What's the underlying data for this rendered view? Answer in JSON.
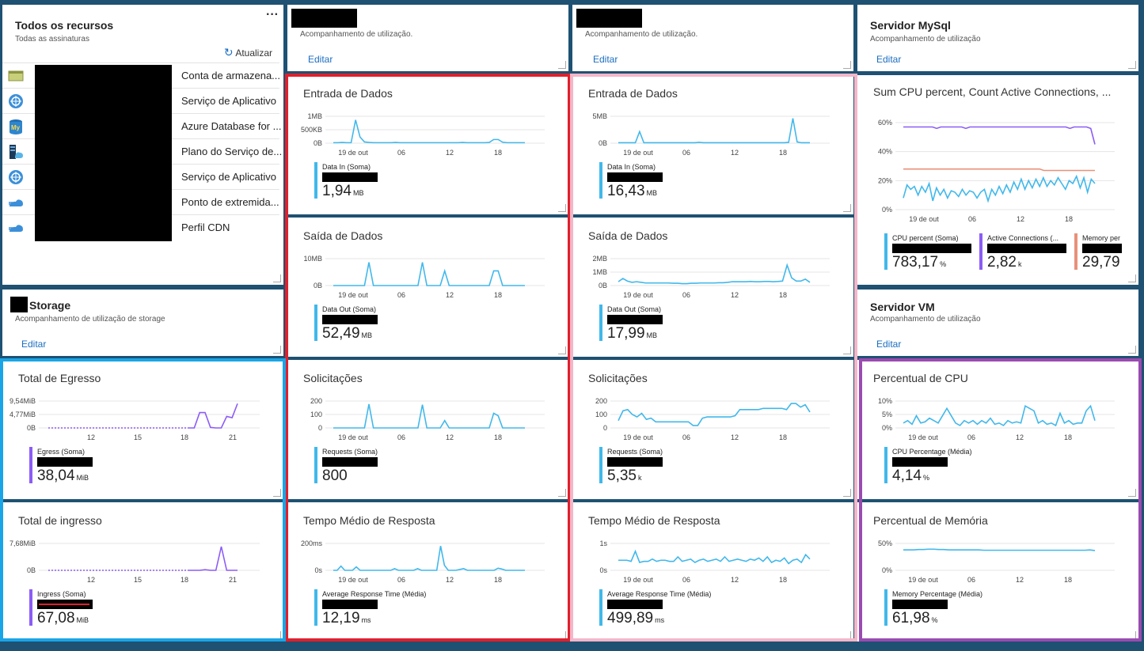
{
  "colors": {
    "chart_line": "#41b8eb",
    "legend_blue": "#41b8eb",
    "purple": "#8b5cf6",
    "orange": "#e8917a",
    "red_frame": "#e0202c",
    "pink_frame": "#f4b6c8",
    "blue_frame": "#1aa5e6",
    "purple_frame": "#9a4bb0"
  },
  "resources": {
    "title": "Todos os recursos",
    "subtitle": "Todas as assinaturas",
    "more": "···",
    "refresh": "Atualizar",
    "items": [
      {
        "name": "Conta de armazena...",
        "icon": "storage-account-icon"
      },
      {
        "name": "Serviço de Aplicativo",
        "icon": "app-service-icon"
      },
      {
        "name": "Azure Database for ...",
        "icon": "mysql-database-icon"
      },
      {
        "name": "Plano do Serviço de...",
        "icon": "app-service-plan-icon"
      },
      {
        "name": "Serviço de Aplicativo",
        "icon": "app-service-icon"
      },
      {
        "name": "Ponto de extremida...",
        "icon": "cdn-endpoint-icon"
      },
      {
        "name": "Perfil CDN",
        "icon": "cdn-profile-icon"
      }
    ]
  },
  "header_tiles": [
    {
      "title": "",
      "subtitle": "Acompanhamento de utilização.",
      "edit": "Editar"
    },
    {
      "title": "",
      "subtitle": "Acompanhamento de utilização.",
      "edit": "Editar"
    },
    {
      "title": "Servidor MySql",
      "subtitle": "Acompanhamento de utilização",
      "edit": "Editar"
    },
    {
      "title": "Storage",
      "subtitle": "Acompanhamento de utilização de storage",
      "edit": "Editar"
    },
    {
      "title": "Servidor VM",
      "subtitle": "Acompanhamento de utilização",
      "edit": "Editar"
    }
  ],
  "metric_tiles": [
    {
      "title": "Entrada de Dados",
      "legend": "Data In (Soma)",
      "value": "1,94",
      "unit": "MB",
      "chart_data": {
        "type": "line",
        "yticks": [
          "1MB",
          "500KB",
          "0B"
        ],
        "xticks": [
          "19 de out",
          "06",
          "12",
          "18"
        ],
        "y": [
          0.02,
          0.02,
          0.03,
          0.02,
          0.02,
          0.95,
          0.25,
          0.05,
          0.03,
          0.02,
          0.02,
          0.02,
          0.02,
          0.02,
          0.03,
          0.02,
          0.02,
          0.02,
          0.02,
          0.02,
          0.02,
          0.02,
          0.02,
          0.02,
          0.02,
          0.02,
          0.02,
          0.02,
          0.02,
          0.03,
          0.02,
          0.02,
          0.02,
          0.02,
          0.02,
          0.03,
          0.15,
          0.15,
          0.04,
          0.02,
          0.02,
          0.02,
          0.02,
          0.02
        ],
        "ymax": 1.1
      }
    },
    {
      "title": "Saída de Dados",
      "legend": "Data Out (Soma)",
      "value": "52,49",
      "unit": "MB",
      "chart_data": {
        "type": "line",
        "yticks": [
          "10MB",
          "0B"
        ],
        "xticks": [
          "19 de out",
          "06",
          "12",
          "18"
        ],
        "y": [
          0,
          0,
          0,
          0,
          0,
          0,
          0,
          0,
          9.5,
          0,
          0,
          0,
          0,
          0,
          0,
          0,
          0,
          0,
          0,
          0,
          9.5,
          0,
          0,
          0,
          0,
          6,
          0,
          0,
          0,
          0,
          0,
          0,
          0,
          0,
          0,
          0,
          6,
          6,
          0,
          0,
          0,
          0,
          0,
          0
        ],
        "ymax": 11
      }
    },
    {
      "title": "Entrada de Dados",
      "legend": "Data In (Soma)",
      "value": "16,43",
      "unit": "MB",
      "chart_data": {
        "type": "line",
        "yticks": [
          "5MB",
          "0B"
        ],
        "xticks": [
          "19 de out",
          "06",
          "12",
          "18"
        ],
        "y": [
          0.1,
          0.1,
          0.1,
          0.1,
          0.1,
          2.8,
          0.1,
          0.1,
          0.1,
          0.1,
          0.1,
          0.1,
          0.1,
          0.1,
          0.1,
          0.1,
          0.1,
          0.1,
          0.1,
          0.2,
          0.1,
          0.1,
          0.1,
          0.1,
          0.1,
          0.1,
          0.1,
          0.1,
          0.1,
          0.1,
          0.1,
          0.1,
          0.1,
          0.1,
          0.1,
          0.1,
          0.1,
          0.1,
          0.1,
          0.1,
          0.2,
          6.0,
          0.3,
          0.1,
          0.1,
          0.1
        ],
        "ymax": 6.5
      }
    },
    {
      "title": "Saída de Dados",
      "legend": "Data Out (Soma)",
      "value": "17,99",
      "unit": "MB",
      "chart_data": {
        "type": "line",
        "yticks": [
          "2MB",
          "1MB",
          "0B"
        ],
        "xticks": [
          "19 de out",
          "06",
          "12",
          "18"
        ],
        "y": [
          0.3,
          0.55,
          0.35,
          0.25,
          0.3,
          0.25,
          0.2,
          0.2,
          0.2,
          0.2,
          0.2,
          0.2,
          0.18,
          0.18,
          0.15,
          0.15,
          0.18,
          0.18,
          0.2,
          0.2,
          0.2,
          0.2,
          0.22,
          0.22,
          0.25,
          0.3,
          0.3,
          0.3,
          0.3,
          0.32,
          0.3,
          0.3,
          0.32,
          0.32,
          0.3,
          0.32,
          0.35,
          1.6,
          0.6,
          0.35,
          0.35,
          0.5,
          0.25
        ],
        "ymax": 2.1
      }
    },
    {
      "title": "Solicitações",
      "legend": "Requests (Soma)",
      "value": "800",
      "unit": "",
      "chart_data": {
        "type": "line",
        "yticks": [
          "200",
          "100",
          "0"
        ],
        "xticks": [
          "19 de out",
          "06",
          "12",
          "18"
        ],
        "y": [
          0,
          0,
          0,
          0,
          0,
          0,
          0,
          0,
          195,
          0,
          0,
          0,
          0,
          0,
          0,
          0,
          0,
          0,
          0,
          0,
          190,
          0,
          0,
          0,
          0,
          60,
          0,
          0,
          0,
          0,
          0,
          0,
          0,
          0,
          0,
          0,
          120,
          100,
          0,
          0,
          0,
          0,
          0,
          0
        ],
        "ymax": 220
      }
    },
    {
      "title": "Solicitações",
      "legend": "Requests (Soma)",
      "value": "5,35",
      "unit": "k",
      "chart_data": {
        "type": "line",
        "yticks": [
          "200",
          "100",
          "0"
        ],
        "xticks": [
          "19 de out",
          "06",
          "12",
          "18"
        ],
        "y": [
          60,
          140,
          150,
          110,
          90,
          120,
          70,
          80,
          50,
          50,
          50,
          50,
          50,
          50,
          50,
          50,
          20,
          20,
          80,
          90,
          90,
          90,
          90,
          90,
          90,
          100,
          150,
          150,
          150,
          150,
          150,
          160,
          160,
          160,
          160,
          160,
          150,
          200,
          200,
          170,
          190,
          130
        ],
        "ymax": 220
      }
    },
    {
      "title": "Tempo Médio de Resposta",
      "legend": "Average Response Time (Média)",
      "value": "12,19",
      "unit": "ms",
      "chart_data": {
        "type": "line",
        "yticks": [
          "200ms",
          "0s"
        ],
        "xticks": [
          "19 de out",
          "06",
          "12",
          "18"
        ],
        "y": [
          0,
          0,
          50,
          0,
          0,
          0,
          40,
          0,
          0,
          0,
          0,
          0,
          0,
          0,
          0,
          0,
          20,
          0,
          0,
          0,
          0,
          0,
          20,
          0,
          0,
          0,
          0,
          0,
          290,
          60,
          0,
          0,
          0,
          10,
          20,
          0,
          0,
          0,
          0,
          0,
          0,
          0,
          0,
          25,
          15,
          0,
          0,
          0,
          0,
          0,
          0
        ],
        "ymax": 320
      }
    },
    {
      "title": "Tempo Médio de Resposta",
      "legend": "Average Response Time (Média)",
      "value": "499,89",
      "unit": "ms",
      "chart_data": {
        "type": "line",
        "yticks": [
          "1s",
          "0s"
        ],
        "xticks": [
          "19 de out",
          "06",
          "12",
          "18"
        ],
        "y": [
          0.45,
          0.45,
          0.45,
          0.4,
          0.85,
          0.35,
          0.4,
          0.4,
          0.5,
          0.4,
          0.45,
          0.45,
          0.4,
          0.4,
          0.6,
          0.4,
          0.45,
          0.5,
          0.35,
          0.45,
          0.5,
          0.4,
          0.45,
          0.5,
          0.4,
          0.6,
          0.4,
          0.45,
          0.5,
          0.45,
          0.4,
          0.5,
          0.45,
          0.55,
          0.4,
          0.6,
          0.35,
          0.45,
          0.4,
          0.55,
          0.3,
          0.45,
          0.5,
          0.35,
          0.7,
          0.5
        ],
        "ymax": 1.2
      }
    },
    {
      "title": "Total de Egresso",
      "legend": "Egress (Soma)",
      "value": "38,04",
      "unit": "MiB",
      "chart_data": {
        "type": "line",
        "yticks": [
          "9,54MiB",
          "4,77MiB",
          "0B"
        ],
        "xticks": [
          "12",
          "15",
          "18",
          "21"
        ],
        "y": [
          0,
          0,
          0,
          0,
          0,
          0,
          0,
          0,
          0,
          0,
          0,
          0,
          0,
          0,
          0,
          0,
          0,
          0,
          0,
          0,
          0,
          0,
          0,
          0,
          0,
          0,
          0,
          0,
          6,
          6,
          0.2,
          0,
          0,
          4.5,
          4,
          9.5
        ],
        "dashed_until": 26,
        "ymax": 10.5
      }
    },
    {
      "title": "Total de ingresso",
      "legend": "Ingress (Soma)",
      "value": "67,08",
      "unit": "MiB",
      "chart_data": {
        "type": "line",
        "yticks": [
          "7,68MiB",
          "0B"
        ],
        "xticks": [
          "12",
          "15",
          "18",
          "21"
        ],
        "y": [
          0,
          0,
          0,
          0,
          0,
          0,
          0,
          0,
          0,
          0,
          0,
          0,
          0,
          0,
          0,
          0,
          0,
          0,
          0,
          0,
          0,
          0,
          0,
          0,
          0,
          0,
          0,
          0,
          0,
          0.2,
          0,
          0,
          7.5,
          0,
          0,
          0
        ],
        "dashed_until": 26,
        "ymax": 8.5
      }
    },
    {
      "title": "Percentual de CPU",
      "legend": "CPU Percentage (Média)",
      "value": "4,14",
      "unit": "%",
      "chart_data": {
        "type": "line",
        "yticks": [
          "10%",
          "5%",
          "0%"
        ],
        "xticks": [
          "19 de out",
          "06",
          "12",
          "18"
        ],
        "y": [
          2,
          3,
          1.5,
          5,
          2,
          2.5,
          4,
          3,
          2,
          5,
          8,
          5,
          2,
          1,
          3,
          2,
          3,
          1.5,
          3,
          2,
          4,
          1.5,
          2,
          1,
          3,
          2,
          2.5,
          2,
          9,
          8,
          7,
          2,
          3,
          1.5,
          2,
          1,
          6,
          2,
          3,
          1.5,
          2,
          2,
          7,
          9,
          3
        ],
        "ymax": 11
      }
    },
    {
      "title": "Percentual de Memória",
      "legend": "Memory Percentage (Média)",
      "value": "61,98",
      "unit": "%",
      "chart_data": {
        "type": "line",
        "yticks": [
          "50%",
          "0%"
        ],
        "xticks": [
          "19 de out",
          "06",
          "12",
          "18"
        ],
        "y": [
          57,
          57,
          57,
          58,
          58,
          59,
          59,
          58,
          58,
          57,
          57,
          57,
          57,
          57,
          57,
          57,
          56,
          56,
          56,
          56,
          56,
          56,
          56,
          56,
          56,
          56,
          56,
          56,
          56,
          56,
          56,
          56,
          56,
          56,
          56,
          56,
          56,
          57,
          55
        ],
        "ymax": 75
      }
    }
  ],
  "mysql_chart": {
    "title": "Sum CPU percent, Count Active Connections, ...",
    "chart_data": {
      "type": "line",
      "yticks": [
        "60%",
        "40%",
        "20%",
        "0%"
      ],
      "xticks": [
        "19 de out",
        "06",
        "12",
        "18"
      ],
      "ymax": 60,
      "series": [
        {
          "color": "#8b5cf6",
          "values": [
            57,
            57,
            57,
            57,
            57,
            57,
            57,
            57,
            56,
            57,
            57,
            57,
            57,
            57,
            57,
            56,
            57,
            57,
            57,
            57,
            57,
            57,
            57,
            57,
            57,
            57,
            57,
            57,
            57,
            57,
            57,
            57,
            57,
            57,
            57,
            57,
            57,
            57,
            57,
            57,
            56,
            57,
            57,
            57,
            57,
            56,
            45
          ]
        },
        {
          "color": "#e8917a",
          "values": [
            28,
            28,
            28,
            28,
            28,
            28,
            28,
            28,
            28,
            28,
            28,
            28,
            28,
            28,
            28,
            28,
            28,
            28,
            28,
            28,
            28,
            28,
            28,
            28,
            28,
            28,
            28,
            28,
            28,
            28,
            28,
            28,
            28,
            27,
            27,
            27,
            27,
            27,
            27,
            27,
            27,
            27,
            27,
            27,
            27,
            27
          ]
        },
        {
          "color": "#41b8eb",
          "values": [
            8,
            17,
            14,
            16,
            10,
            16,
            12,
            18,
            6,
            15,
            10,
            14,
            8,
            13,
            12,
            9,
            14,
            10,
            13,
            12,
            8,
            12,
            14,
            6,
            14,
            10,
            16,
            11,
            17,
            12,
            19,
            14,
            21,
            14,
            20,
            15,
            21,
            16,
            22,
            16,
            20,
            17,
            22,
            18,
            14,
            20,
            18,
            23,
            15,
            22,
            12,
            21,
            18
          ]
        }
      ]
    },
    "legends": [
      {
        "name": "CPU percent (Soma)",
        "value": "783,17",
        "unit": "%",
        "color": "#41b8eb"
      },
      {
        "name": "Active Connections (...",
        "value": "2,82",
        "unit": "k",
        "color": "#8b5cf6"
      },
      {
        "name": "Memory per",
        "value": "29,79",
        "unit": "",
        "color": "#e8917a"
      }
    ]
  }
}
